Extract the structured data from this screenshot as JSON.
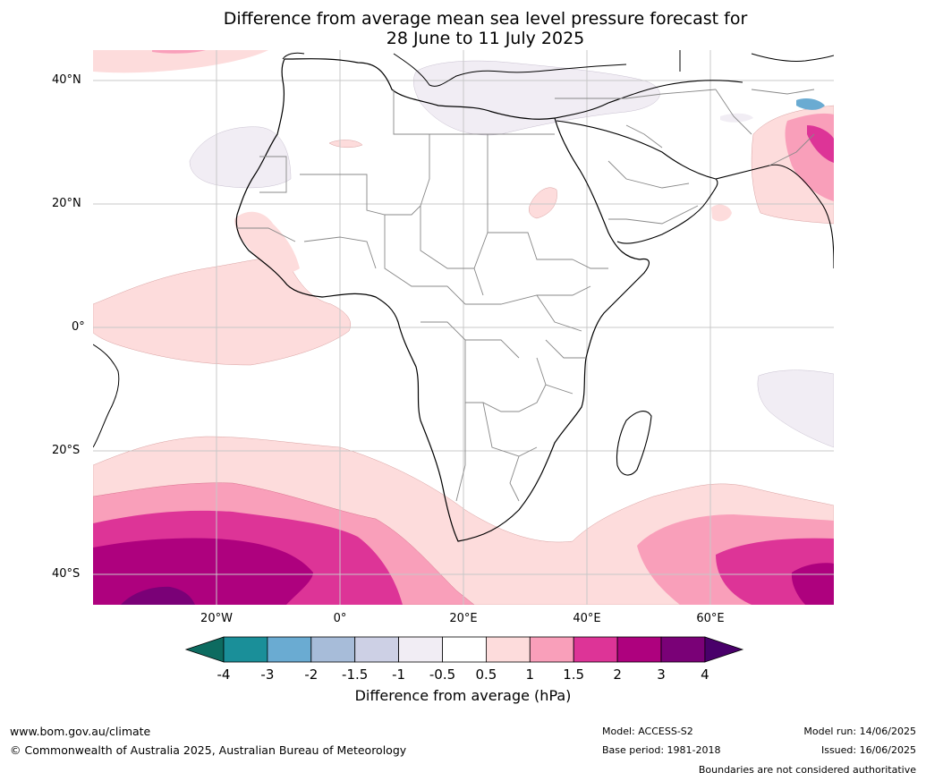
{
  "title": {
    "line1": "Difference from average mean sea level pressure forecast for",
    "line2": "28 June to 11 July 2025"
  },
  "axes": {
    "lat_labels": [
      "40°N",
      "20°N",
      "0°",
      "20°S",
      "40°S"
    ],
    "lon_labels": [
      "20°W",
      "0°",
      "20°E",
      "40°E",
      "60°E"
    ]
  },
  "colorbar": {
    "label": "Difference from average (hPa)",
    "ticks": [
      "-4",
      "-3",
      "-2",
      "-1.5",
      "-1",
      "-0.5",
      "0.5",
      "1",
      "1.5",
      "2",
      "3",
      "4"
    ],
    "colors": [
      "#0d6b60",
      "#1a8f99",
      "#6aabd2",
      "#a7bcd9",
      "#cdd0e5",
      "#f1edf4",
      "#ffffff",
      "#fddcdc",
      "#f99fba",
      "#dd3497",
      "#ae017e",
      "#7a0177",
      "#49006a"
    ]
  },
  "footer": {
    "website": "www.bom.gov.au/climate",
    "copyright": "© Commonwealth of Australia 2025, Australian Bureau of Meteorology",
    "model": "Model: ACCESS-S2",
    "base_period": "Base period: 1981-2018",
    "model_run": "Model run: 14/06/2025",
    "issued": "Issued: 16/06/2025",
    "disclaimer": "Boundaries are not considered authoritative"
  }
}
